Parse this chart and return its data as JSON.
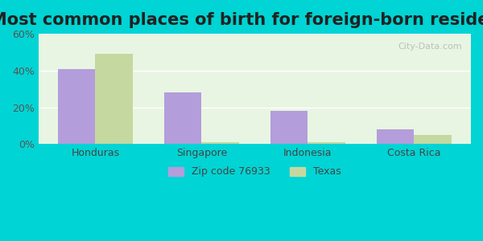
{
  "title": "Most common places of birth for foreign-born residents",
  "categories": [
    "Honduras",
    "Singapore",
    "Indonesia",
    "Costa Rica"
  ],
  "zip_values": [
    41,
    28,
    18,
    8
  ],
  "texas_values": [
    49,
    1,
    1,
    5
  ],
  "zip_color": "#b39ddb",
  "texas_color": "#c5d8a0",
  "background_outer": "#00d4d4",
  "background_inner": "#e8f5e2",
  "ylim": [
    0,
    60
  ],
  "yticks": [
    0,
    20,
    40,
    60
  ],
  "ytick_labels": [
    "0%",
    "20%",
    "40%",
    "60%"
  ],
  "zip_label": "Zip code 76933",
  "texas_label": "Texas",
  "title_fontsize": 15,
  "bar_width": 0.35,
  "watermark": "City-Data.com"
}
